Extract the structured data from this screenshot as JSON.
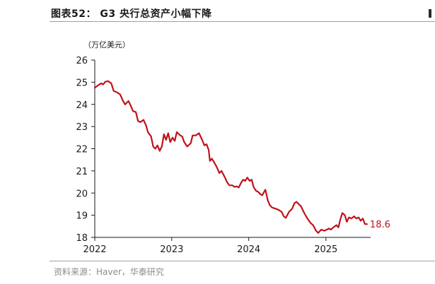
{
  "figure": {
    "title": "图表52： G3 央行总资产小幅下降",
    "unit": "（万亿美元）",
    "source": "资料来源：Haver，华泰研究"
  },
  "colors": {
    "series": "#c0121a",
    "axis": "#1a1a1a",
    "rule": "#a0a0a0"
  },
  "chart_data": {
    "type": "line",
    "title": "G3 央行总资产小幅下降",
    "xlabel": "",
    "ylabel": "（万亿美元）",
    "ylim": [
      18,
      26
    ],
    "xlim": [
      "2022-01-01",
      "2025-08-01"
    ],
    "yticks": [
      18,
      19,
      20,
      21,
      22,
      23,
      24,
      25,
      26
    ],
    "xticks": [
      "2022",
      "2023",
      "2024",
      "2025"
    ],
    "grid": false,
    "end_label": "18.6",
    "series": [
      {
        "points": [
          [
            "2022-01-01",
            24.75
          ],
          [
            "2022-01-15",
            24.85
          ],
          [
            "2022-02-01",
            24.95
          ],
          [
            "2022-02-10",
            24.9
          ],
          [
            "2022-02-20",
            25.02
          ],
          [
            "2022-03-05",
            25.05
          ],
          [
            "2022-03-20",
            24.95
          ],
          [
            "2022-04-01",
            24.6
          ],
          [
            "2022-04-15",
            24.55
          ],
          [
            "2022-05-01",
            24.45
          ],
          [
            "2022-05-15",
            24.15
          ],
          [
            "2022-05-25",
            24.0
          ],
          [
            "2022-06-10",
            24.15
          ],
          [
            "2022-06-20",
            23.95
          ],
          [
            "2022-07-01",
            23.7
          ],
          [
            "2022-07-15",
            23.65
          ],
          [
            "2022-07-25",
            23.25
          ],
          [
            "2022-08-05",
            23.2
          ],
          [
            "2022-08-20",
            23.3
          ],
          [
            "2022-09-01",
            23.05
          ],
          [
            "2022-09-10",
            22.75
          ],
          [
            "2022-09-25",
            22.55
          ],
          [
            "2022-10-05",
            22.1
          ],
          [
            "2022-10-15",
            22.0
          ],
          [
            "2022-10-25",
            22.15
          ],
          [
            "2022-11-05",
            21.9
          ],
          [
            "2022-11-15",
            22.1
          ],
          [
            "2022-11-25",
            22.65
          ],
          [
            "2022-12-05",
            22.4
          ],
          [
            "2022-12-15",
            22.7
          ],
          [
            "2022-12-25",
            22.3
          ],
          [
            "2023-01-05",
            22.5
          ],
          [
            "2023-01-15",
            22.35
          ],
          [
            "2023-01-25",
            22.75
          ],
          [
            "2023-02-10",
            22.6
          ],
          [
            "2023-02-20",
            22.55
          ],
          [
            "2023-03-01",
            22.3
          ],
          [
            "2023-03-15",
            22.1
          ],
          [
            "2023-04-01",
            22.25
          ],
          [
            "2023-04-10",
            22.6
          ],
          [
            "2023-04-25",
            22.6
          ],
          [
            "2023-05-10",
            22.7
          ],
          [
            "2023-05-25",
            22.4
          ],
          [
            "2023-06-05",
            22.15
          ],
          [
            "2023-06-15",
            22.2
          ],
          [
            "2023-06-25",
            21.95
          ],
          [
            "2023-07-01",
            21.45
          ],
          [
            "2023-07-10",
            21.55
          ],
          [
            "2023-07-20",
            21.4
          ],
          [
            "2023-08-01",
            21.2
          ],
          [
            "2023-08-15",
            20.9
          ],
          [
            "2023-08-25",
            21.0
          ],
          [
            "2023-09-10",
            20.7
          ],
          [
            "2023-09-20",
            20.5
          ],
          [
            "2023-10-01",
            20.35
          ],
          [
            "2023-10-15",
            20.35
          ],
          [
            "2023-10-25",
            20.28
          ],
          [
            "2023-11-05",
            20.3
          ],
          [
            "2023-11-15",
            20.25
          ],
          [
            "2023-11-25",
            20.45
          ],
          [
            "2023-12-05",
            20.6
          ],
          [
            "2023-12-15",
            20.55
          ],
          [
            "2023-12-25",
            20.7
          ],
          [
            "2024-01-05",
            20.55
          ],
          [
            "2024-01-15",
            20.6
          ],
          [
            "2024-01-25",
            20.25
          ],
          [
            "2024-02-05",
            20.1
          ],
          [
            "2024-02-15",
            20.05
          ],
          [
            "2024-02-25",
            19.95
          ],
          [
            "2024-03-05",
            19.9
          ],
          [
            "2024-03-20",
            20.15
          ],
          [
            "2024-04-01",
            19.65
          ],
          [
            "2024-04-10",
            19.45
          ],
          [
            "2024-04-20",
            19.35
          ],
          [
            "2024-05-05",
            19.3
          ],
          [
            "2024-05-20",
            19.25
          ],
          [
            "2024-06-05",
            19.15
          ],
          [
            "2024-06-15",
            18.95
          ],
          [
            "2024-06-25",
            18.88
          ],
          [
            "2024-07-10",
            19.15
          ],
          [
            "2024-07-25",
            19.3
          ],
          [
            "2024-08-05",
            19.55
          ],
          [
            "2024-08-15",
            19.6
          ],
          [
            "2024-08-25",
            19.5
          ],
          [
            "2024-09-05",
            19.4
          ],
          [
            "2024-09-20",
            19.1
          ],
          [
            "2024-10-05",
            18.85
          ],
          [
            "2024-10-20",
            18.65
          ],
          [
            "2024-11-01",
            18.55
          ],
          [
            "2024-11-15",
            18.3
          ],
          [
            "2024-11-25",
            18.2
          ],
          [
            "2024-12-10",
            18.35
          ],
          [
            "2024-12-25",
            18.3
          ],
          [
            "2025-01-05",
            18.35
          ],
          [
            "2025-01-15",
            18.4
          ],
          [
            "2025-01-25",
            18.35
          ],
          [
            "2025-02-05",
            18.45
          ],
          [
            "2025-02-20",
            18.55
          ],
          [
            "2025-03-01",
            18.45
          ],
          [
            "2025-03-10",
            18.8
          ],
          [
            "2025-03-20",
            19.1
          ],
          [
            "2025-04-01",
            19.0
          ],
          [
            "2025-04-10",
            18.7
          ],
          [
            "2025-04-20",
            18.9
          ],
          [
            "2025-05-01",
            18.85
          ],
          [
            "2025-05-15",
            18.95
          ],
          [
            "2025-05-25",
            18.85
          ],
          [
            "2025-06-05",
            18.9
          ],
          [
            "2025-06-15",
            18.75
          ],
          [
            "2025-06-25",
            18.85
          ],
          [
            "2025-07-05",
            18.6
          ],
          [
            "2025-07-15",
            18.6
          ]
        ]
      }
    ]
  }
}
